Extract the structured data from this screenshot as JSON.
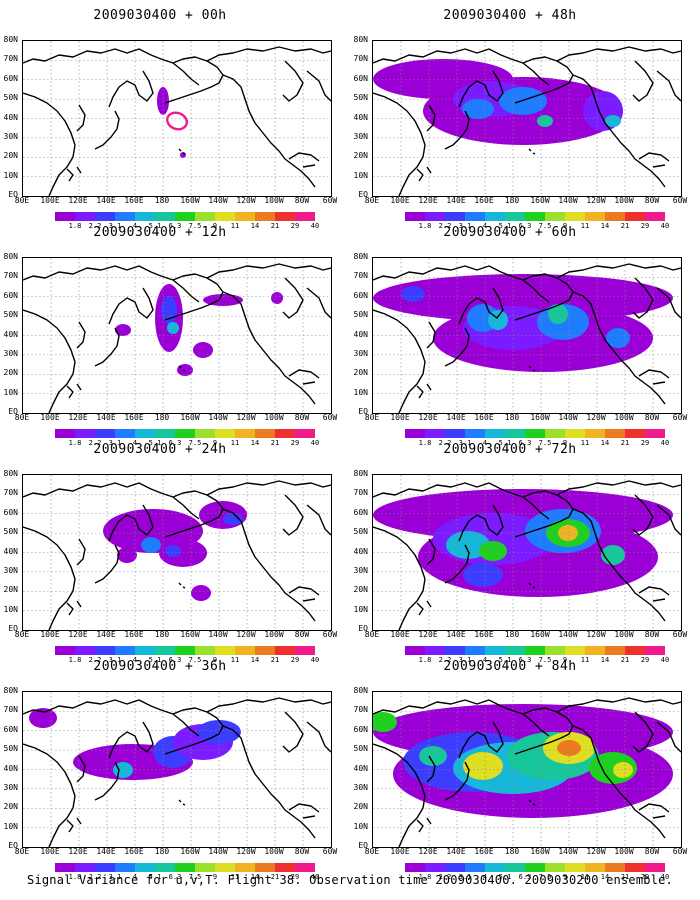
{
  "panels": [
    {
      "title": "2009030400 + 00h"
    },
    {
      "title": "2009030400 + 48h"
    },
    {
      "title": "2009030400 + 12h"
    },
    {
      "title": "2009030400 + 60h"
    },
    {
      "title": "2009030400 + 24h"
    },
    {
      "title": "2009030400 + 72h"
    },
    {
      "title": "2009030400 + 36h"
    },
    {
      "title": "2009030400 + 84h"
    }
  ],
  "axes": {
    "lat_labels": [
      "80N",
      "70N",
      "60N",
      "50N",
      "40N",
      "30N",
      "20N",
      "10N",
      "EQ"
    ],
    "lon_labels": [
      "80E",
      "100E",
      "120E",
      "140E",
      "160E",
      "180",
      "160W",
      "140W",
      "120W",
      "100W",
      "80W",
      "60W"
    ]
  },
  "colorbar": {
    "colors": [
      "#9a00d6",
      "#7a1cff",
      "#3d3dff",
      "#1f7cff",
      "#17b7d8",
      "#18c69c",
      "#20d020",
      "#9be02c",
      "#dede22",
      "#f0b422",
      "#ee7a20",
      "#ee3030",
      "#f01a8a"
    ],
    "labels": [
      "1.8",
      "2.2",
      "3.1",
      "4",
      "5.1",
      "6.3",
      "7.5",
      "9",
      "11",
      "14",
      "21",
      "29",
      "40"
    ]
  },
  "caption": "Signal Variance for u,v,T. Flight 38. Observation time 2009030400. 2009030200 ensemble."
}
